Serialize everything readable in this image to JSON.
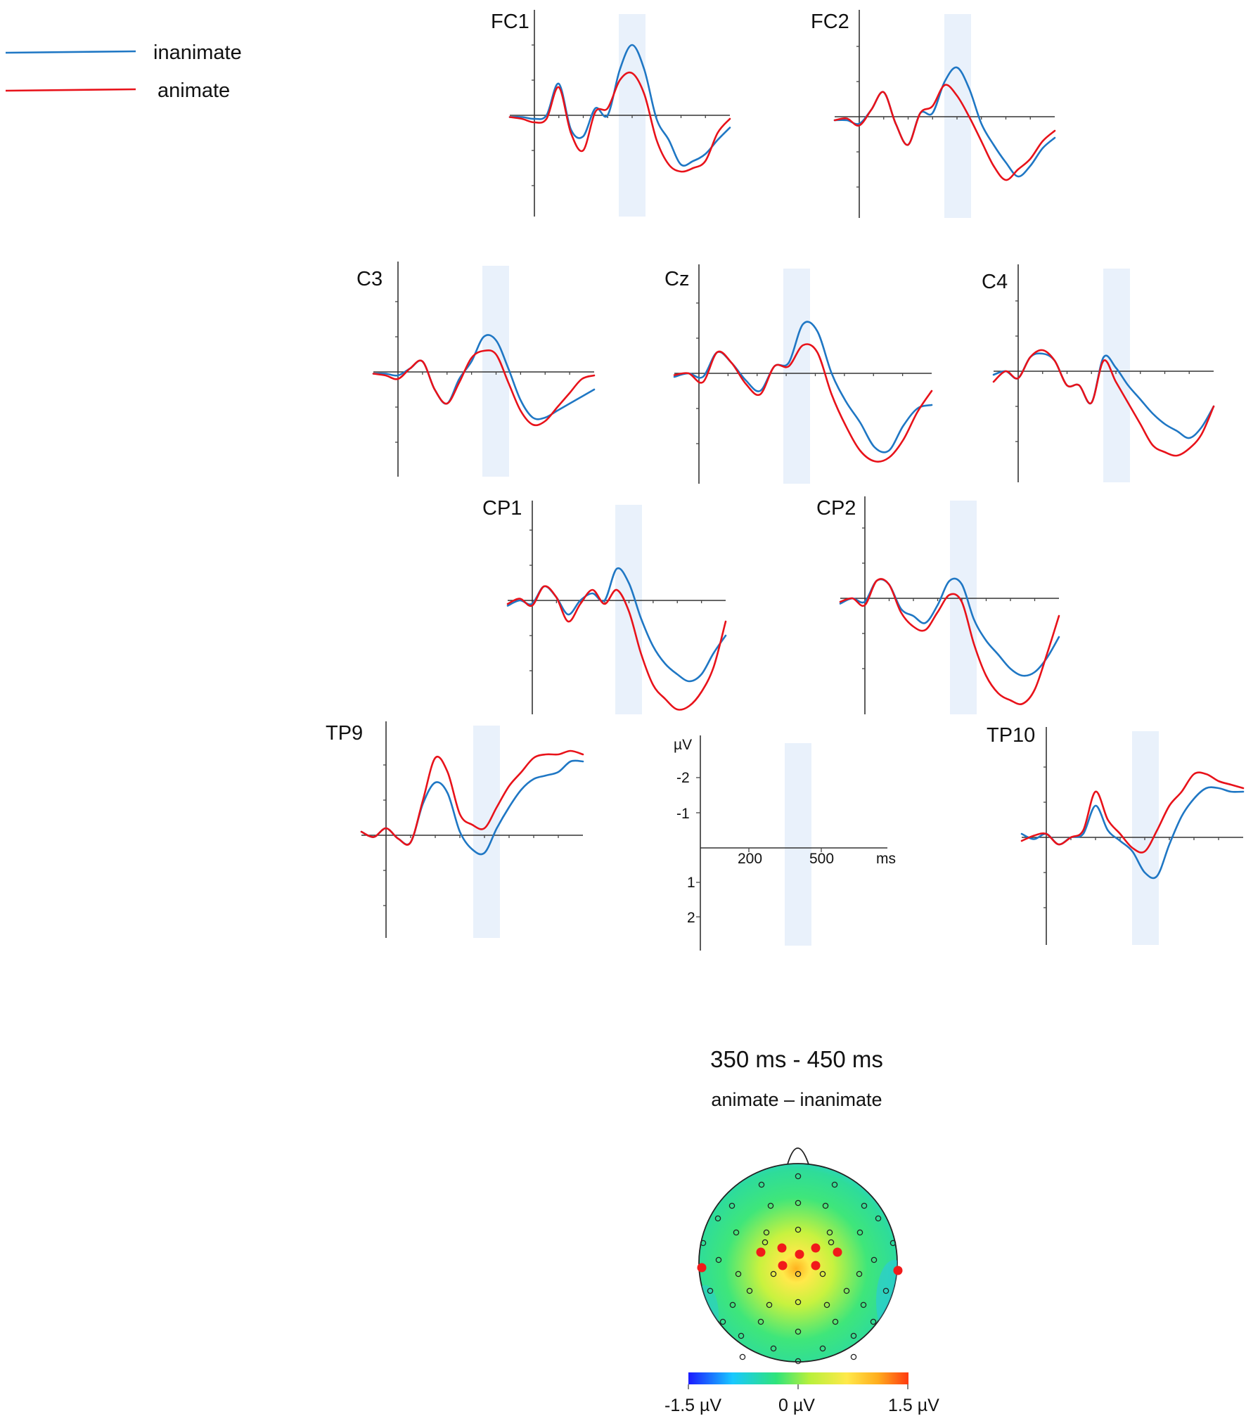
{
  "legend": [
    {
      "label": "inanimate",
      "color": "#1f77c4"
    },
    {
      "label": "animate",
      "color": "#e8121a"
    }
  ],
  "chart_data": [
    {
      "type": "line",
      "description": "ERP waveforms, negative up",
      "x_unit": "ms",
      "y_unit": "µV",
      "x_ticks": [
        200,
        500
      ],
      "y_ticks": [
        -2,
        -1,
        1,
        2
      ],
      "y_inverted": true,
      "highlight_window": [
        350,
        450
      ],
      "scale_labels": {
        "unit": "µV",
        "y_ticks": [
          "-2",
          "-1",
          "1",
          "2"
        ],
        "x_ticks": [
          "200",
          "500"
        ],
        "x_unit": "ms"
      },
      "series_colors": {
        "inanimate": "#1f77c4",
        "animate": "#e8121a"
      },
      "x": [
        -100,
        -50,
        0,
        50,
        100,
        150,
        200,
        250,
        300,
        350,
        400,
        450,
        500,
        550,
        600,
        650,
        700,
        750,
        800
      ],
      "panels": [
        {
          "channel": "FC1",
          "inanimate": [
            0.05,
            0.05,
            0.1,
            0.0,
            -0.9,
            0.4,
            0.6,
            -0.2,
            0.0,
            -1.3,
            -2.0,
            -1.3,
            0.1,
            0.7,
            1.4,
            1.3,
            1.1,
            0.7,
            0.35
          ],
          "animate": [
            0.05,
            0.1,
            0.2,
            0.1,
            -0.8,
            0.5,
            1.0,
            -0.1,
            -0.2,
            -1.0,
            -1.2,
            -0.6,
            0.7,
            1.4,
            1.6,
            1.5,
            1.3,
            0.5,
            0.1
          ]
        },
        {
          "channel": "FC2",
          "inanimate": [
            0.1,
            0.1,
            0.2,
            -0.2,
            -0.7,
            0.2,
            0.8,
            -0.1,
            -0.1,
            -1.0,
            -1.4,
            -0.8,
            0.2,
            0.8,
            1.3,
            1.7,
            1.4,
            0.9,
            0.6
          ],
          "animate": [
            0.1,
            0.05,
            0.25,
            -0.2,
            -0.7,
            0.2,
            0.8,
            -0.1,
            -0.3,
            -0.9,
            -0.6,
            0.0,
            0.7,
            1.4,
            1.8,
            1.5,
            1.2,
            0.7,
            0.4
          ]
        },
        {
          "channel": "C3",
          "inanimate": [
            0.05,
            0.05,
            0.1,
            -0.1,
            -0.3,
            0.5,
            0.9,
            0.2,
            -0.3,
            -1.0,
            -0.9,
            -0.1,
            0.8,
            1.3,
            1.3,
            1.1,
            0.9,
            0.7,
            0.5
          ],
          "animate": [
            0.05,
            0.1,
            0.2,
            -0.1,
            -0.3,
            0.5,
            0.9,
            0.3,
            -0.4,
            -0.6,
            -0.5,
            0.3,
            1.1,
            1.5,
            1.4,
            1.0,
            0.6,
            0.2,
            0.1
          ]
        },
        {
          "channel": "Cz",
          "inanimate": [
            0.1,
            0.0,
            0.1,
            -0.6,
            -0.3,
            0.2,
            0.5,
            -0.2,
            -0.3,
            -1.4,
            -1.2,
            0.0,
            0.8,
            1.4,
            2.1,
            2.2,
            1.5,
            1.0,
            0.9
          ],
          "animate": [
            0.05,
            0.0,
            0.25,
            -0.6,
            -0.3,
            0.3,
            0.6,
            -0.2,
            -0.2,
            -0.8,
            -0.6,
            0.6,
            1.5,
            2.2,
            2.5,
            2.4,
            1.9,
            1.1,
            0.5
          ]
        },
        {
          "channel": "C4",
          "inanimate": [
            0.1,
            0.0,
            0.2,
            -0.4,
            -0.5,
            -0.3,
            0.4,
            0.4,
            0.9,
            -0.4,
            -0.1,
            0.4,
            0.8,
            1.2,
            1.5,
            1.7,
            1.9,
            1.6,
            1.0
          ],
          "animate": [
            0.3,
            0.0,
            0.2,
            -0.4,
            -0.6,
            -0.3,
            0.4,
            0.4,
            0.9,
            -0.3,
            0.3,
            0.9,
            1.5,
            2.1,
            2.3,
            2.4,
            2.2,
            1.8,
            1.0
          ]
        },
        {
          "channel": "CP1",
          "inanimate": [
            0.15,
            0.0,
            0.1,
            -0.4,
            -0.1,
            0.4,
            0.0,
            -0.2,
            0.0,
            -0.9,
            -0.5,
            0.5,
            1.3,
            1.8,
            2.1,
            2.3,
            2.1,
            1.5,
            1.0
          ],
          "animate": [
            0.1,
            -0.05,
            0.15,
            -0.4,
            -0.1,
            0.6,
            0.1,
            -0.3,
            0.1,
            -0.3,
            0.3,
            1.5,
            2.4,
            2.8,
            3.1,
            3.0,
            2.6,
            1.9,
            0.6
          ]
        },
        {
          "channel": "CP2",
          "inanimate": [
            0.15,
            0.0,
            0.1,
            -0.5,
            -0.4,
            0.3,
            0.5,
            0.7,
            0.2,
            -0.5,
            -0.4,
            0.6,
            1.2,
            1.6,
            2.0,
            2.2,
            2.1,
            1.7,
            1.1
          ],
          "animate": [
            0.1,
            0.0,
            0.2,
            -0.5,
            -0.4,
            0.4,
            0.8,
            0.9,
            0.4,
            -0.1,
            0.1,
            1.3,
            2.2,
            2.7,
            2.9,
            3.0,
            2.6,
            1.6,
            0.5
          ]
        },
        {
          "channel": "TP9",
          "inanimate": [
            -0.1,
            0.05,
            -0.2,
            0.1,
            0.2,
            -0.9,
            -1.5,
            -1.2,
            -0.1,
            0.4,
            0.5,
            -0.2,
            -0.8,
            -1.3,
            -1.6,
            -1.7,
            -1.8,
            -2.1,
            -2.1
          ],
          "animate": [
            -0.1,
            0.05,
            -0.2,
            0.1,
            0.2,
            -1.0,
            -2.2,
            -1.8,
            -0.6,
            -0.3,
            -0.2,
            -0.8,
            -1.4,
            -1.8,
            -2.2,
            -2.3,
            -2.3,
            -2.4,
            -2.3
          ],
          "axes_only": false
        },
        {
          "channel": "TP10",
          "inanimate": [
            -0.1,
            0.05,
            -0.1,
            0.2,
            0.0,
            -0.1,
            -0.9,
            -0.2,
            0.1,
            0.4,
            1.0,
            1.1,
            0.2,
            -0.6,
            -1.1,
            -1.4,
            -1.4,
            -1.3,
            -1.3
          ],
          "animate": [
            0.1,
            -0.05,
            -0.1,
            0.2,
            0.0,
            -0.2,
            -1.3,
            -0.5,
            -0.1,
            0.3,
            0.4,
            -0.2,
            -0.9,
            -1.3,
            -1.8,
            -1.8,
            -1.6,
            -1.5,
            -1.4
          ]
        }
      ]
    },
    {
      "type": "heatmap",
      "description": "Scalp topography of the animate minus inanimate difference",
      "title": "350 ms - 450 ms",
      "subtitle": "animate – inanimate",
      "colorbar": {
        "min": -1.5,
        "max": 1.5,
        "unit": "µV",
        "labels": [
          "-1.5 µV",
          "0 µV",
          "1.5 µV"
        ],
        "colors": [
          "#1a1aff",
          "#19c8ff",
          "#2fe47a",
          "#b8f03c",
          "#ffe94a",
          "#ffae1e",
          "#ff3a10"
        ]
      },
      "highlighted_electrodes": [
        "FC1",
        "FC2",
        "C3",
        "Cz",
        "C4",
        "CP1",
        "CP2",
        "TP9",
        "TP10"
      ],
      "electrode_marker": "open circle",
      "highlight_marker": "filled red circle"
    }
  ]
}
